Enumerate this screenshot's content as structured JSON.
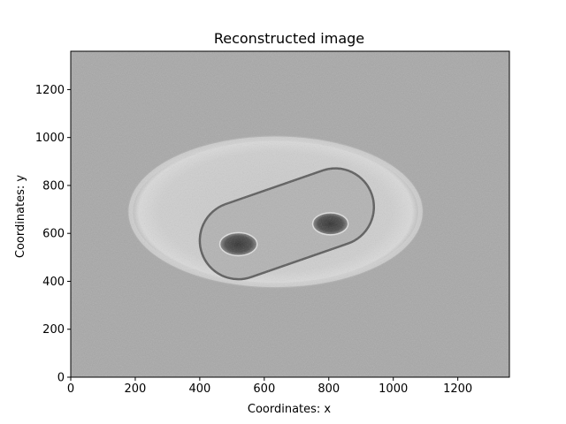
{
  "chart_data": {
    "type": "heatmap",
    "title": "Reconstructed image",
    "xlabel": "Coordinates: x",
    "ylabel": "Coordinates: y",
    "xlim": [
      0,
      1360
    ],
    "ylim": [
      0,
      1360
    ],
    "xticks": [
      0,
      200,
      400,
      600,
      800,
      1000,
      1200
    ],
    "yticks": [
      0,
      200,
      400,
      600,
      800,
      1000,
      1200
    ],
    "colormap": "grayscale",
    "grid": false,
    "legend": "none",
    "features": {
      "outer_ring": {
        "center": [
          635,
          690
        ],
        "radii": [
          460,
          320
        ],
        "tone": "light"
      },
      "capsule": {
        "from": [
          520,
          570
        ],
        "to": [
          820,
          710
        ],
        "half_width": 120,
        "tone": "medium-gray"
      },
      "dark_hole_left": {
        "center": [
          520,
          555
        ],
        "radii": [
          58,
          48
        ]
      },
      "dark_hole_right": {
        "center": [
          805,
          640
        ],
        "radii": [
          55,
          46
        ]
      }
    },
    "colors": {
      "background": "#a8a8a8",
      "ring": "#d2d2d2",
      "capsule": "#b3b3b3",
      "capsule_edge": "#5a5a5a",
      "hole": "#3c3c3c"
    }
  }
}
